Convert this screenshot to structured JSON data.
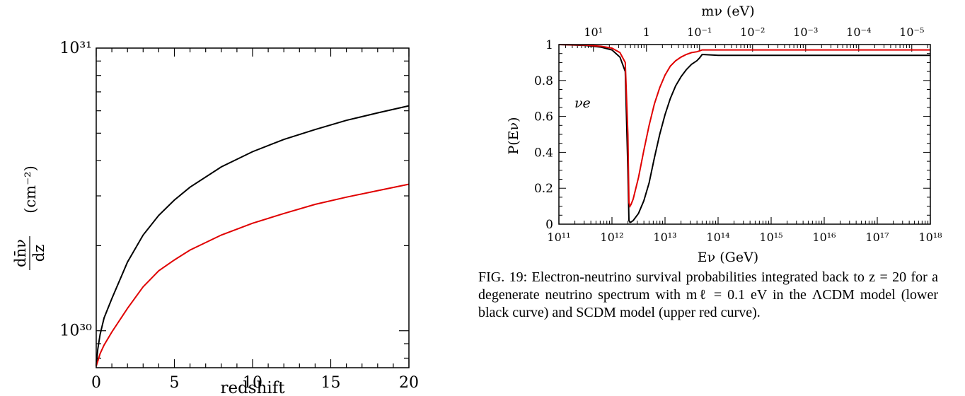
{
  "caption": {
    "label": "FIG. 19:",
    "text": "Electron-neutrino survival probabilities integrated back to z = 20 for a degenerate neutrino spectrum with mℓ = 0.1 eV in the ΛCDM model (lower black curve) and SCDM model (upper red curve)."
  },
  "chart_data": [
    {
      "type": "line",
      "xlabel": "redshift",
      "ylabel_num": "dn̄ν",
      "ylabel_den": "dz",
      "ylabel_unit": "(cm⁻²)",
      "x_ticks": [
        "0",
        "5",
        "10",
        "15",
        "20"
      ],
      "y_ticks": [
        "10³⁰",
        "10³¹"
      ],
      "xlim": [
        0,
        20
      ],
      "ylim": [
        7.4e+29,
        1e+31
      ],
      "y_scale": "log",
      "grid": false,
      "series": [
        {
          "color": "#000000",
          "x": [
            0,
            0.1,
            0.25,
            0.5,
            1,
            2,
            3,
            4,
            5,
            6,
            8,
            10,
            12,
            14,
            16,
            18,
            20
          ],
          "values": [
            7.5e+29,
            8.6e+29,
            9.7e+29,
            1.11e+30,
            1.3e+30,
            1.75e+30,
            2.18e+30,
            2.56e+30,
            2.9e+30,
            3.22e+30,
            3.8e+30,
            4.3e+30,
            4.75e+30,
            5.15e+30,
            5.55e+30,
            5.9e+30,
            6.25e+30
          ]
        },
        {
          "color": "#e00000",
          "x": [
            0,
            0.1,
            0.25,
            0.5,
            1,
            2,
            3,
            4,
            5,
            6,
            8,
            10,
            12,
            14,
            16,
            18,
            20
          ],
          "values": [
            7.5e+29,
            7.8e+29,
            8.3e+29,
            8.9e+29,
            9.9e+29,
            1.2e+30,
            1.43e+30,
            1.63e+30,
            1.78e+30,
            1.93e+30,
            2.18e+30,
            2.4e+30,
            2.6e+30,
            2.8e+30,
            2.97e+30,
            3.13e+30,
            3.3e+30
          ]
        }
      ]
    },
    {
      "type": "line",
      "xlabel": "Eν (GeV)",
      "ylabel": "P(Eν)",
      "top_label": "mν (eV)",
      "annotation": "νe",
      "x_ticks": [
        "10¹¹",
        "10¹²",
        "10¹³",
        "10¹⁴",
        "10¹⁵",
        "10¹⁶",
        "10¹⁷",
        "10¹⁸"
      ],
      "x_tick_exps": [
        11,
        12,
        13,
        14,
        15,
        16,
        17,
        18
      ],
      "top_ticks": [
        "10¹",
        "1",
        "10⁻¹",
        "10⁻²",
        "10⁻³",
        "10⁻⁴",
        "10⁻⁵"
      ],
      "top_tick_exps": [
        11.65,
        12.65,
        13.65,
        14.65,
        15.65,
        16.65,
        17.65
      ],
      "y_ticks": [
        "0",
        "0.2",
        "0.4",
        "0.6",
        "0.8",
        "1"
      ],
      "y_tick_vals": [
        0,
        0.2,
        0.4,
        0.6,
        0.8,
        1
      ],
      "xlim_log10": [
        11,
        18
      ],
      "ylim": [
        0,
        1
      ],
      "x_scale": "log",
      "grid": false,
      "series": [
        {
          "color": "#000000",
          "log10_x": [
            11,
            11.5,
            11.8,
            12.0,
            12.15,
            12.25,
            12.3,
            12.32,
            12.34,
            12.36,
            12.4,
            12.5,
            12.6,
            12.7,
            12.8,
            12.9,
            13.0,
            13.1,
            13.2,
            13.3,
            13.4,
            13.5,
            13.6,
            13.65,
            13.7,
            14,
            18
          ],
          "values": [
            1.0,
            0.995,
            0.985,
            0.97,
            0.93,
            0.85,
            0.3,
            0.02,
            0.01,
            0.012,
            0.02,
            0.06,
            0.13,
            0.23,
            0.37,
            0.5,
            0.61,
            0.7,
            0.77,
            0.82,
            0.86,
            0.89,
            0.91,
            0.925,
            0.945,
            0.94,
            0.94
          ]
        },
        {
          "color": "#e00000",
          "log10_x": [
            11,
            11.5,
            11.8,
            12.0,
            12.15,
            12.25,
            12.3,
            12.32,
            12.34,
            12.36,
            12.4,
            12.5,
            12.6,
            12.7,
            12.8,
            12.9,
            13.0,
            13.1,
            13.2,
            13.3,
            13.4,
            13.5,
            13.6,
            13.65,
            13.7,
            14,
            18
          ],
          "values": [
            1.0,
            0.997,
            0.99,
            0.98,
            0.955,
            0.9,
            0.5,
            0.12,
            0.1,
            0.11,
            0.14,
            0.26,
            0.41,
            0.55,
            0.67,
            0.76,
            0.83,
            0.88,
            0.91,
            0.93,
            0.945,
            0.955,
            0.96,
            0.965,
            0.97,
            0.97,
            0.97
          ]
        }
      ]
    }
  ]
}
